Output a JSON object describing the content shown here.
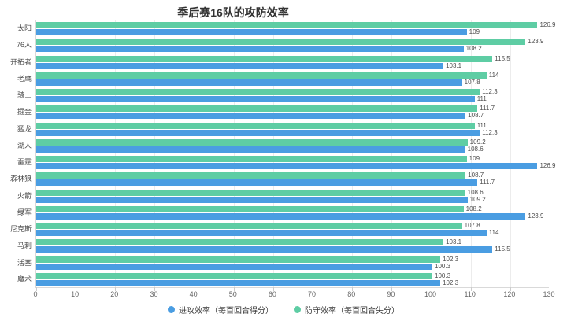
{
  "chart_data": {
    "type": "bar",
    "orientation": "horizontal",
    "title": "季后赛16队的攻防效率",
    "categories": [
      "太阳",
      "76人",
      "开拓者",
      "老鹰",
      "骑士",
      "掘金",
      "猛龙",
      "湖人",
      "雷霆",
      "森林狼",
      "火箭",
      "绿军",
      "尼克斯",
      "马刺",
      "活塞",
      "魔术"
    ],
    "series": [
      {
        "name": "进攻效率（每百回合得分）",
        "color": "#4a9de2",
        "values": [
          109,
          108.2,
          103.1,
          107.8,
          111,
          108.7,
          112.3,
          108.6,
          126.9,
          111.7,
          109.2,
          123.9,
          114,
          115.5,
          100.3,
          102.3
        ]
      },
      {
        "name": "防守效率（每百回合失分）",
        "color": "#5ecda4",
        "values": [
          126.9,
          123.9,
          115.5,
          114,
          112.3,
          111.7,
          111,
          109.2,
          109,
          108.7,
          108.6,
          108.2,
          107.8,
          103.1,
          102.3,
          100.3
        ]
      }
    ],
    "xlim": [
      0,
      130
    ],
    "x_ticks": [
      0,
      10,
      20,
      30,
      40,
      50,
      60,
      70,
      80,
      90,
      100,
      110,
      120,
      130
    ],
    "value_labels": true,
    "grid": true,
    "legend_position": "bottom"
  }
}
